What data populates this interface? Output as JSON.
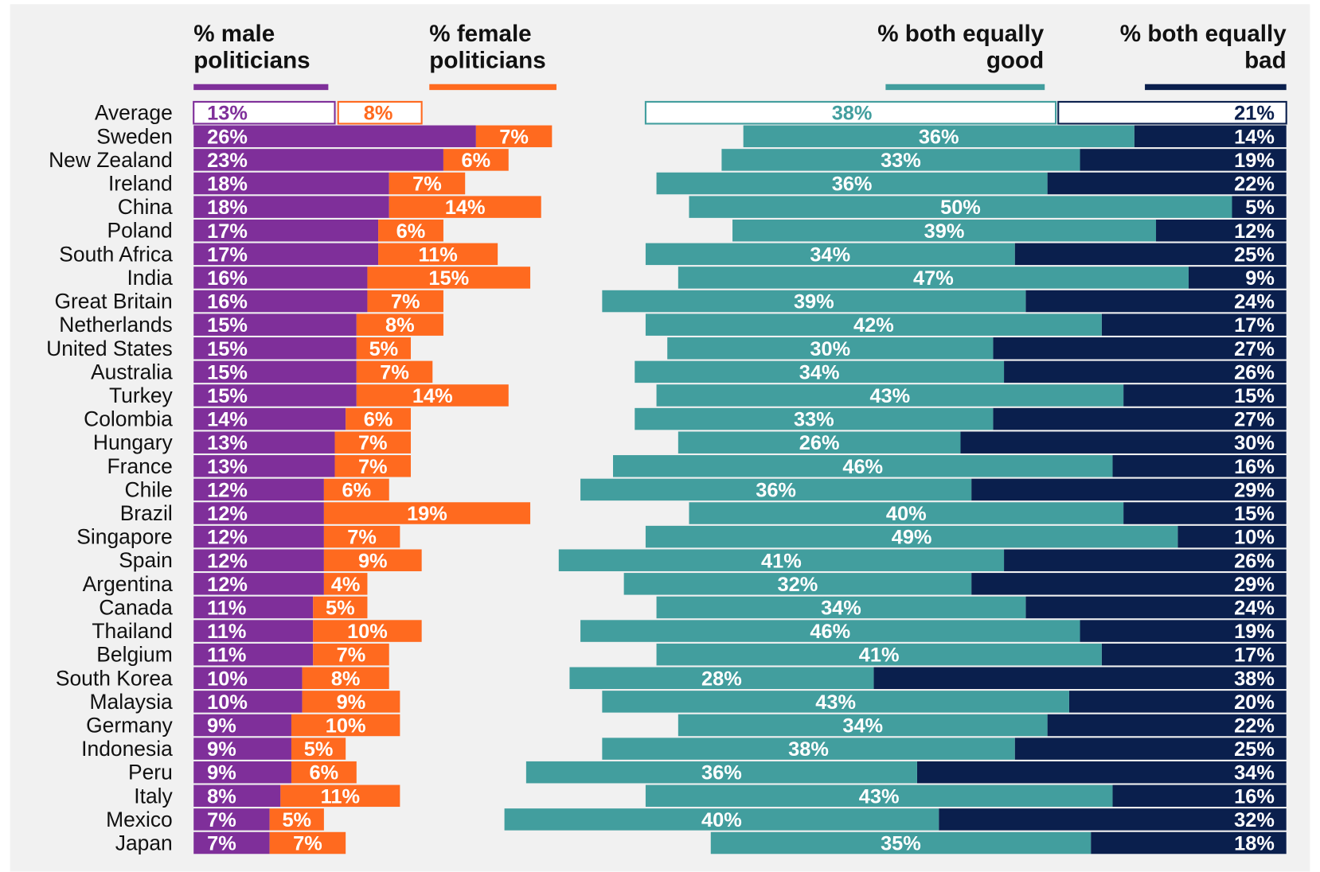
{
  "chart_data": {
    "type": "diverging-bar",
    "categories": [
      "Average",
      "Sweden",
      "New Zealand",
      "Ireland",
      "China",
      "Poland",
      "South Africa",
      "India",
      "Great Britain",
      "Netherlands",
      "United States",
      "Australia",
      "Turkey",
      "Colombia",
      "Hungary",
      "France",
      "Chile",
      "Brazil",
      "Singapore",
      "Spain",
      "Argentina",
      "Canada",
      "Thailand",
      "Belgium",
      "South Korea",
      "Malaysia",
      "Germany",
      "Indonesia",
      "Peru",
      "Italy",
      "Mexico",
      "Japan"
    ],
    "series": [
      {
        "name": "% male politicians",
        "color": "#7f2f9a",
        "values": [
          13,
          26,
          23,
          18,
          18,
          17,
          17,
          16,
          16,
          15,
          15,
          15,
          15,
          14,
          13,
          13,
          12,
          12,
          12,
          12,
          12,
          11,
          11,
          11,
          10,
          10,
          9,
          9,
          9,
          8,
          7,
          7
        ],
        "value_labels": [
          "13%",
          "26%",
          "23%",
          "18%",
          "18%",
          "17%",
          "17%",
          "16%",
          "16%",
          "15%",
          "15%",
          "15%",
          "15%",
          "14%",
          "13%",
          "13%",
          "12%",
          "12%",
          "12%",
          "12%",
          "12%",
          "11%",
          "11%",
          "11%",
          "10%",
          "10%",
          "9%",
          "9%",
          "9%",
          "8%",
          "7%",
          "7%"
        ]
      },
      {
        "name": "% female politicians",
        "color": "#ff6a1f",
        "values": [
          8,
          7,
          6,
          7,
          14,
          6,
          11,
          15,
          7,
          8,
          5,
          7,
          14,
          6,
          7,
          7,
          6,
          19,
          7,
          9,
          4,
          5,
          10,
          7,
          8,
          9,
          10,
          5,
          6,
          11,
          5,
          7
        ],
        "value_labels": [
          "8%",
          "7%",
          "6%",
          "7%",
          "14%",
          "6%",
          "11%",
          "15%",
          "7%",
          "8%",
          "5%",
          "7%",
          "14%",
          "6%",
          "7%",
          "7%",
          "6%",
          "19%",
          "7%",
          "9%",
          "4%",
          "5%",
          "10%",
          "7%",
          "8%",
          "9%",
          "10%",
          "5%",
          "6%",
          "11%",
          "5%",
          "7%"
        ]
      },
      {
        "name": "% both equally good",
        "color": "#429e9e",
        "values": [
          38,
          36,
          33,
          36,
          50,
          39,
          34,
          47,
          39,
          42,
          30,
          34,
          43,
          33,
          26,
          46,
          36,
          40,
          49,
          41,
          32,
          34,
          46,
          41,
          28,
          43,
          34,
          38,
          36,
          43,
          40,
          35
        ],
        "value_labels": [
          "38%",
          "36%",
          "33%",
          "36%",
          "50%",
          "39%",
          "34%",
          "47%",
          "39%",
          "42%",
          "30%",
          "34%",
          "43%",
          "33%",
          "26%",
          "46%",
          "36%",
          "40%",
          "49%",
          "41%",
          "32%",
          "34%",
          "46%",
          "41%",
          "28%",
          "43%",
          "34%",
          "38%",
          "36%",
          "43%",
          "40%",
          "35%"
        ]
      },
      {
        "name": "% both equally bad",
        "color": "#0a1f4d",
        "values": [
          21,
          14,
          19,
          22,
          5,
          12,
          25,
          9,
          24,
          17,
          27,
          26,
          15,
          27,
          30,
          16,
          29,
          15,
          10,
          26,
          29,
          24,
          19,
          17,
          38,
          20,
          22,
          25,
          34,
          16,
          32,
          18
        ],
        "value_labels": [
          "21%",
          "14%",
          "19%",
          "22%",
          "5%",
          "12%",
          "25%",
          "9%",
          "24%",
          "17%",
          "27%",
          "26%",
          "15%",
          "27%",
          "30%",
          "16%",
          "29%",
          "15%",
          "10%",
          "26%",
          "29%",
          "24%",
          "19%",
          "17%",
          "38%",
          "20%",
          "22%",
          "25%",
          "34%",
          "16%",
          "32%",
          "18%"
        ]
      }
    ]
  }
}
